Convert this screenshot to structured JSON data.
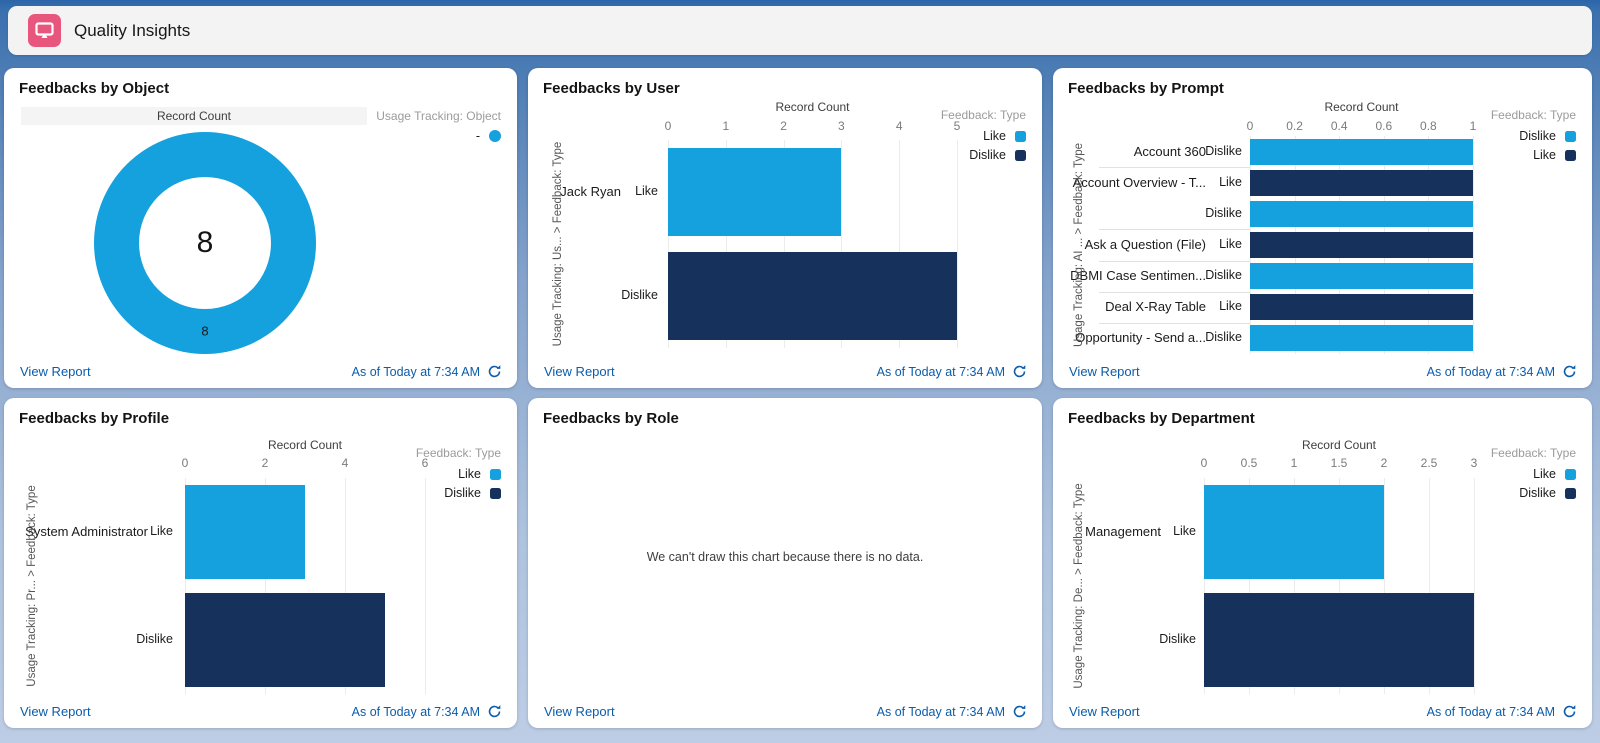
{
  "header": {
    "title": "Quality Insights",
    "icon": "dashboard-monitor-icon",
    "icon_color": "#e8567e"
  },
  "colors": {
    "like_blue": "#14a1dd",
    "dislike_navy": "#16325c",
    "link_blue": "#0b5cab"
  },
  "footer": {
    "view_report": "View Report",
    "as_of": "As of Today at 7:34 AM",
    "refresh_icon": "refresh-icon"
  },
  "panels": [
    {
      "title": "Feedbacks by Object",
      "chart_data": {
        "type": "pie",
        "variant": "donut",
        "header_band": "Record Count",
        "legend_title": "Usage Tracking: Object",
        "legend_items": [
          {
            "label": "-",
            "color": "#14a1dd"
          }
        ],
        "total": "8",
        "slices": [
          {
            "label": "-",
            "value": 8,
            "color": "#14a1dd"
          }
        ]
      }
    },
    {
      "title": "Feedbacks by User",
      "chart_data": {
        "type": "bar",
        "orientation": "horizontal",
        "axis_title": "Record Count",
        "x_ticks": [
          "0",
          "1",
          "2",
          "3",
          "4",
          "5"
        ],
        "x_max": 5,
        "y_axis_label": "Usage Tracking: Us... > Feedback: Type",
        "legend_title": "Feedback: Type",
        "legend": [
          {
            "label": "Like",
            "color": "#14a1dd"
          },
          {
            "label": "Dislike",
            "color": "#16325c"
          }
        ],
        "rows": [
          {
            "group": "Jack Ryan",
            "sub": "Like",
            "value": 3,
            "color": "#14a1dd"
          },
          {
            "group": "",
            "sub": "Dislike",
            "value": 5,
            "color": "#16325c"
          }
        ]
      }
    },
    {
      "title": "Feedbacks by Prompt",
      "chart_data": {
        "type": "bar",
        "orientation": "horizontal",
        "axis_title": "Record Count",
        "x_ticks": [
          "0",
          "0.2",
          "0.4",
          "0.6",
          "0.8",
          "1"
        ],
        "x_max": 1,
        "y_axis_label": "Usage Tracking: AI ... > Feedback: Type",
        "legend_title": "Feedback: Type",
        "legend": [
          {
            "label": "Dislike",
            "color": "#14a1dd"
          },
          {
            "label": "Like",
            "color": "#16325c"
          }
        ],
        "rows": [
          {
            "group": "Account 360",
            "sub": "Dislike",
            "value": 1,
            "color": "#14a1dd"
          },
          {
            "group": "Account Overview - T...",
            "sub": "Like",
            "value": 1,
            "color": "#16325c"
          },
          {
            "group": "",
            "sub": "Dislike",
            "value": 1,
            "color": "#14a1dd"
          },
          {
            "group": "Ask a Question (File)",
            "sub": "Like",
            "value": 1,
            "color": "#16325c"
          },
          {
            "group": "DBMI Case Sentimen...",
            "sub": "Dislike",
            "value": 1,
            "color": "#14a1dd"
          },
          {
            "group": "Deal X-Ray Table",
            "sub": "Like",
            "value": 1,
            "color": "#16325c"
          },
          {
            "group": "Opportunity - Send a...",
            "sub": "Dislike",
            "value": 1,
            "color": "#14a1dd"
          }
        ]
      }
    },
    {
      "title": "Feedbacks by Profile",
      "chart_data": {
        "type": "bar",
        "orientation": "horizontal",
        "axis_title": "Record Count",
        "x_ticks": [
          "0",
          "2",
          "4",
          "6"
        ],
        "x_max": 6,
        "y_axis_label": "Usage Tracking: Pr... > Feedback: Type",
        "legend_title": "Feedback: Type",
        "legend": [
          {
            "label": "Like",
            "color": "#14a1dd"
          },
          {
            "label": "Dislike",
            "color": "#16325c"
          }
        ],
        "rows": [
          {
            "group": "System Administrator",
            "sub": "Like",
            "value": 3,
            "color": "#14a1dd"
          },
          {
            "group": "",
            "sub": "Dislike",
            "value": 5,
            "color": "#16325c"
          }
        ]
      }
    },
    {
      "title": "Feedbacks by Role",
      "chart_data": {
        "type": "bar",
        "empty": true,
        "message": "We can't draw this chart because there is no data."
      }
    },
    {
      "title": "Feedbacks by Department",
      "chart_data": {
        "type": "bar",
        "orientation": "horizontal",
        "axis_title": "Record Count",
        "x_ticks": [
          "0",
          "0.5",
          "1",
          "1.5",
          "2",
          "2.5",
          "3"
        ],
        "x_max": 3,
        "y_axis_label": "Usage Tracking: De... > Feedback: Type",
        "legend_title": "Feedback: Type",
        "legend": [
          {
            "label": "Like",
            "color": "#14a1dd"
          },
          {
            "label": "Dislike",
            "color": "#16325c"
          }
        ],
        "rows": [
          {
            "group": "Management",
            "sub": "Like",
            "value": 2,
            "color": "#14a1dd"
          },
          {
            "group": "",
            "sub": "Dislike",
            "value": 3,
            "color": "#16325c"
          }
        ]
      }
    }
  ]
}
